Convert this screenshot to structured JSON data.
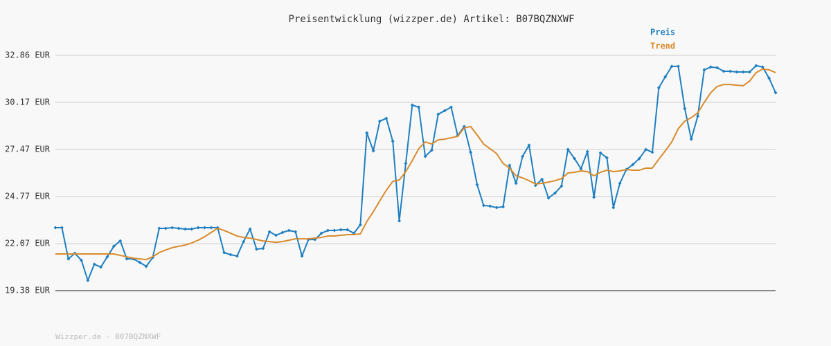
{
  "chart_data": {
    "type": "line",
    "title": "Preisentwicklung (wizzper.de) Artikel: B07BQZNXWF",
    "footer": "Wizzper.de - B07BQZNXWF",
    "ylim": [
      19.38,
      32.86
    ],
    "yticks": [
      {
        "value": 19.38,
        "label": "19.38 EUR"
      },
      {
        "value": 22.07,
        "label": "22.07 EUR"
      },
      {
        "value": 24.77,
        "label": "24.77 EUR"
      },
      {
        "value": 27.47,
        "label": "27.47 EUR"
      },
      {
        "value": 30.17,
        "label": "30.17 EUR"
      },
      {
        "value": 32.86,
        "label": "32.86 EUR"
      }
    ],
    "grid": true,
    "legend": "top-right",
    "series": [
      {
        "name": "Preis",
        "color": "#1f7fc0",
        "markers": true,
        "values": [
          22.99,
          22.99,
          21.2,
          21.52,
          21.12,
          19.97,
          20.89,
          20.73,
          21.32,
          21.92,
          22.23,
          21.2,
          21.2,
          21.0,
          20.77,
          21.28,
          22.95,
          22.95,
          22.99,
          22.95,
          22.91,
          22.91,
          22.99,
          22.99,
          22.99,
          22.99,
          21.56,
          21.44,
          21.36,
          22.19,
          22.91,
          21.76,
          21.8,
          22.75,
          22.55,
          22.71,
          22.83,
          22.75,
          21.36,
          22.31,
          22.31,
          22.67,
          22.83,
          22.83,
          22.87,
          22.87,
          22.67,
          23.15,
          28.42,
          27.39,
          29.09,
          29.25,
          27.94,
          23.38,
          26.67,
          30.01,
          29.89,
          27.07,
          27.43,
          29.49,
          29.69,
          29.89,
          28.26,
          28.78,
          27.31,
          25.45,
          24.26,
          24.22,
          24.14,
          24.18,
          26.56,
          25.53,
          27.07,
          27.71,
          25.41,
          25.76,
          24.69,
          24.97,
          25.37,
          27.47,
          26.95,
          26.36,
          27.35,
          24.73,
          27.27,
          26.99,
          24.14,
          25.53,
          26.32,
          26.6,
          26.95,
          27.47,
          27.31,
          31.0,
          31.63,
          32.23,
          32.23,
          29.81,
          28.06,
          29.37,
          32.03,
          32.19,
          32.15,
          31.95,
          31.95,
          31.91,
          31.91,
          31.91,
          32.27,
          32.19,
          31.55,
          30.72
        ]
      },
      {
        "name": "Trend",
        "color": "#d98a2a",
        "markers": false,
        "values": [
          21.48,
          21.48,
          21.48,
          21.48,
          21.48,
          21.48,
          21.48,
          21.48,
          21.48,
          21.48,
          21.4,
          21.32,
          21.24,
          21.2,
          21.16,
          21.32,
          21.56,
          21.71,
          21.84,
          21.92,
          21.99,
          22.11,
          22.27,
          22.47,
          22.71,
          22.95,
          22.83,
          22.67,
          22.51,
          22.43,
          22.39,
          22.31,
          22.23,
          22.19,
          22.15,
          22.19,
          22.27,
          22.35,
          22.35,
          22.35,
          22.39,
          22.43,
          22.51,
          22.51,
          22.55,
          22.59,
          22.59,
          22.63,
          23.34,
          23.9,
          24.53,
          25.13,
          25.64,
          25.72,
          26.2,
          26.83,
          27.51,
          27.9,
          27.78,
          28.02,
          28.06,
          28.14,
          28.22,
          28.7,
          28.78,
          28.3,
          27.78,
          27.51,
          27.23,
          26.67,
          26.4,
          25.96,
          25.84,
          25.68,
          25.49,
          25.53,
          25.6,
          25.68,
          25.8,
          26.12,
          26.16,
          26.24,
          26.2,
          25.96,
          26.16,
          26.28,
          26.2,
          26.24,
          26.32,
          26.28,
          26.28,
          26.4,
          26.4,
          26.91,
          27.39,
          27.9,
          28.66,
          29.09,
          29.29,
          29.57,
          30.16,
          30.72,
          31.08,
          31.19,
          31.19,
          31.15,
          31.12,
          31.39,
          31.87,
          32.07,
          32.03,
          31.87
        ]
      }
    ]
  }
}
